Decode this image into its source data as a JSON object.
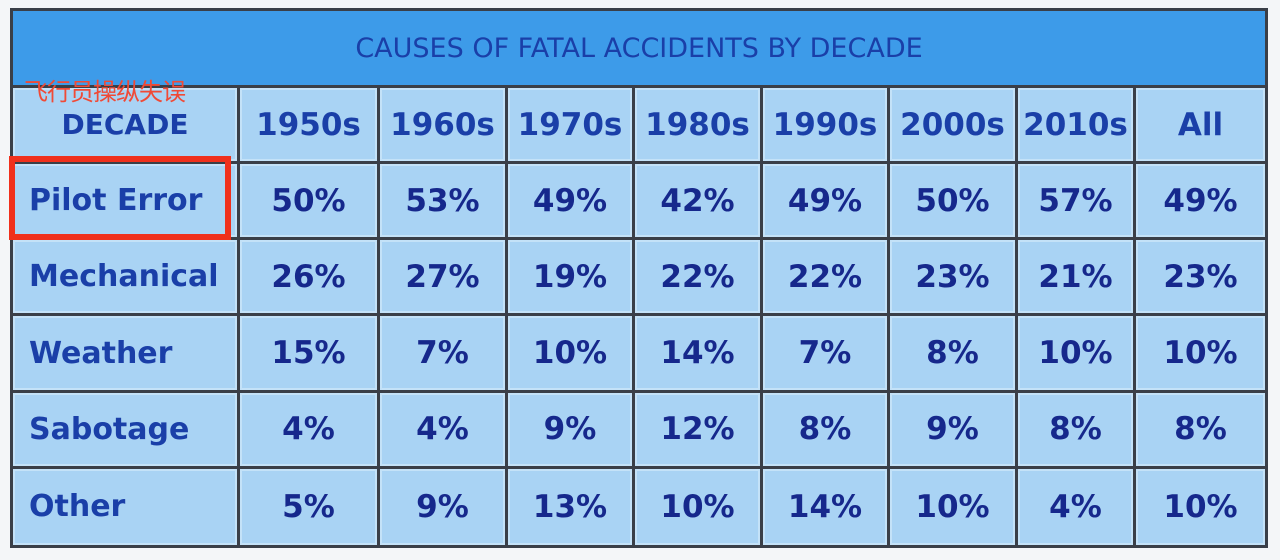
{
  "title": "CAUSES OF FATAL ACCIDENTS BY DECADE",
  "annotation": "飞行员操纵失误",
  "highlight_color": "#f0301c",
  "header": [
    "DECADE",
    "1950s",
    "1960s",
    "1970s",
    "1980s",
    "1990s",
    "2000s",
    "2010s",
    "All"
  ],
  "rows": [
    {
      "label": "Pilot Error",
      "values": [
        "50%",
        "53%",
        "49%",
        "42%",
        "49%",
        "50%",
        "57%",
        "49%"
      ]
    },
    {
      "label": "Mechanical",
      "values": [
        "26%",
        "27%",
        "19%",
        "22%",
        "22%",
        "23%",
        "21%",
        "23%"
      ]
    },
    {
      "label": "Weather",
      "values": [
        "15%",
        "7%",
        "10%",
        "14%",
        "7%",
        "8%",
        "10%",
        "10%"
      ]
    },
    {
      "label": "Sabotage",
      "values": [
        "4%",
        "4%",
        "9%",
        "12%",
        "8%",
        "9%",
        "8%",
        "8%"
      ]
    },
    {
      "label": "Other",
      "values": [
        "5%",
        "9%",
        "13%",
        "10%",
        "14%",
        "10%",
        "4%",
        "10%"
      ]
    }
  ]
}
